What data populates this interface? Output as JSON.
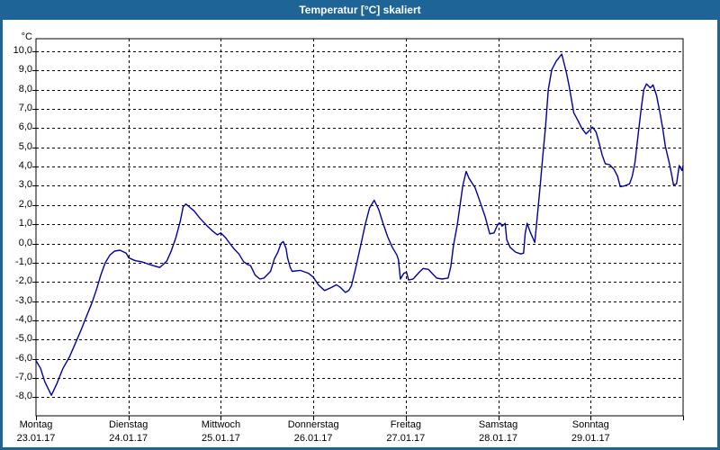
{
  "window": {
    "title": "Temperatur [°C] skaliert"
  },
  "colors": {
    "frame_blue": "#1e6496",
    "title_text": "#ffffff",
    "plot_background": "#ffffff",
    "plot_border": "#000000",
    "gridline": "#000000",
    "series_line": "#0000a0",
    "label_text": "#000000"
  },
  "y_axis": {
    "unit_label": "°C",
    "tick_labels": [
      "10,0",
      "9,0",
      "8,0",
      "7,0",
      "6,0",
      "5,0",
      "4,0",
      "3,0",
      "2,0",
      "1,0",
      "0,0",
      "-1,0",
      "-2,0",
      "-3,0",
      "-4,0",
      "-5,0",
      "-6,0",
      "-7,0",
      "-8,0"
    ]
  },
  "x_axis": {
    "days": [
      {
        "name": "Montag",
        "date": "23.01.17"
      },
      {
        "name": "Dienstag",
        "date": "24.01.17"
      },
      {
        "name": "Mittwoch",
        "date": "25.01.17"
      },
      {
        "name": "Donnerstag",
        "date": "26.01.17"
      },
      {
        "name": "Freitag",
        "date": "27.01.17"
      },
      {
        "name": "Samstag",
        "date": "28.01.17"
      },
      {
        "name": "Sonntag",
        "date": "29.01.17"
      }
    ]
  },
  "chart_data": {
    "type": "line",
    "title": "Temperatur [°C] skaliert",
    "xlabel": "",
    "ylabel": "°C",
    "ylim": [
      -8,
      10
    ],
    "y_tick_step": 1,
    "x_unit": "hours since Montag 23.01.17 00:00",
    "xlim": [
      0,
      168
    ],
    "x_day_tick_hours": [
      0,
      24,
      48,
      72,
      96,
      120,
      144
    ],
    "grid": "dashed black, horizontal every 1°C and vertical every day",
    "legend": "none",
    "series": [
      {
        "name": "Temperatur",
        "color": "#0000a0",
        "points": [
          [
            0,
            -6.1
          ],
          [
            1.2,
            -6.5
          ],
          [
            2.3,
            -7.2
          ],
          [
            4,
            -7.9
          ],
          [
            5.4,
            -7.3
          ],
          [
            7,
            -6.5
          ],
          [
            8.7,
            -5.9
          ],
          [
            10,
            -5.3
          ],
          [
            11.7,
            -4.5
          ],
          [
            13.3,
            -3.7
          ],
          [
            14.5,
            -3.1
          ],
          [
            15.7,
            -2.4
          ],
          [
            16.9,
            -1.6
          ],
          [
            18,
            -1
          ],
          [
            19.2,
            -0.6
          ],
          [
            20.4,
            -0.4
          ],
          [
            21.8,
            -0.35
          ],
          [
            23.4,
            -0.5
          ],
          [
            24.1,
            -0.75
          ],
          [
            25.8,
            -0.9
          ],
          [
            27.4,
            -0.95
          ],
          [
            28.8,
            -1.05
          ],
          [
            30.4,
            -1.15
          ],
          [
            32.1,
            -1.25
          ],
          [
            33,
            -1.1
          ],
          [
            34,
            -0.9
          ],
          [
            35.1,
            -0.4
          ],
          [
            36.3,
            0.3
          ],
          [
            37.5,
            1.2
          ],
          [
            38.2,
            1.9
          ],
          [
            38.9,
            2.05
          ],
          [
            39.8,
            1.9
          ],
          [
            41,
            1.7
          ],
          [
            42.6,
            1.3
          ],
          [
            44.5,
            0.9
          ],
          [
            46.1,
            0.6
          ],
          [
            47.1,
            0.45
          ],
          [
            48,
            0.55
          ],
          [
            49.2,
            0.3
          ],
          [
            50.3,
            0
          ],
          [
            51.5,
            -0.3
          ],
          [
            52.7,
            -0.55
          ],
          [
            53.9,
            -0.95
          ],
          [
            55,
            -1.1
          ],
          [
            55.7,
            -1.15
          ],
          [
            56.9,
            -1.65
          ],
          [
            58.1,
            -1.85
          ],
          [
            59.2,
            -1.8
          ],
          [
            60.9,
            -1.45
          ],
          [
            61.9,
            -0.8
          ],
          [
            62.8,
            -0.45
          ],
          [
            63.6,
            0
          ],
          [
            64.2,
            0.1
          ],
          [
            64.9,
            -0.25
          ],
          [
            65.3,
            -0.75
          ],
          [
            66,
            -1.25
          ],
          [
            66.5,
            -1.45
          ],
          [
            68.6,
            -1.4
          ],
          [
            70.7,
            -1.55
          ],
          [
            72,
            -1.75
          ],
          [
            73.3,
            -2.15
          ],
          [
            74.9,
            -2.45
          ],
          [
            76.6,
            -2.3
          ],
          [
            78,
            -2.15
          ],
          [
            79.1,
            -2.3
          ],
          [
            80.3,
            -2.55
          ],
          [
            81.2,
            -2.45
          ],
          [
            81.9,
            -2.2
          ],
          [
            83.1,
            -1.2
          ],
          [
            84.3,
            -0.1
          ],
          [
            85.5,
            1
          ],
          [
            86.6,
            1.85
          ],
          [
            87.8,
            2.25
          ],
          [
            89,
            1.75
          ],
          [
            90.1,
            1.05
          ],
          [
            91.3,
            0.35
          ],
          [
            92.5,
            -0.2
          ],
          [
            93.7,
            -0.6
          ],
          [
            94.1,
            -0.85
          ],
          [
            94.6,
            -1.85
          ],
          [
            95.5,
            -1.55
          ],
          [
            96.2,
            -1.5
          ],
          [
            96.7,
            -1.9
          ],
          [
            97.9,
            -1.85
          ],
          [
            99.5,
            -1.5
          ],
          [
            100.5,
            -1.3
          ],
          [
            101.9,
            -1.35
          ],
          [
            102.8,
            -1.55
          ],
          [
            104,
            -1.8
          ],
          [
            105.4,
            -1.85
          ],
          [
            107,
            -1.8
          ],
          [
            107.7,
            -1.2
          ],
          [
            108.4,
            -0.1
          ],
          [
            109.4,
            1
          ],
          [
            110.1,
            2
          ],
          [
            110.8,
            3
          ],
          [
            111.7,
            3.75
          ],
          [
            112.4,
            3.4
          ],
          [
            114,
            2.9
          ],
          [
            115.4,
            2.1
          ],
          [
            116.6,
            1.4
          ],
          [
            117.8,
            0.5
          ],
          [
            118.9,
            0.55
          ],
          [
            119.9,
            1
          ],
          [
            120.6,
            1.05
          ],
          [
            121,
            0.9
          ],
          [
            121.8,
            1.05
          ],
          [
            122.2,
            0.2
          ],
          [
            123.1,
            -0.2
          ],
          [
            124.5,
            -0.45
          ],
          [
            125.9,
            -0.55
          ],
          [
            126.6,
            -0.5
          ],
          [
            127,
            0.5
          ],
          [
            127.5,
            1.05
          ],
          [
            128.3,
            0.6
          ],
          [
            129.5,
            0.05
          ],
          [
            130.2,
            1.5
          ],
          [
            130.9,
            3
          ],
          [
            131.6,
            4.6
          ],
          [
            132.3,
            6.1
          ],
          [
            133,
            8
          ],
          [
            133.9,
            9.05
          ],
          [
            135.1,
            9.5
          ],
          [
            136.5,
            9.85
          ],
          [
            137.7,
            8.9
          ],
          [
            138.4,
            8.2
          ],
          [
            139.1,
            7.4
          ],
          [
            139.6,
            6.8
          ],
          [
            140.7,
            6.4
          ],
          [
            141.7,
            6
          ],
          [
            142.8,
            5.7
          ],
          [
            143.8,
            5.9
          ],
          [
            144.5,
            6.05
          ],
          [
            145.4,
            5.8
          ],
          [
            146.1,
            5.3
          ],
          [
            147,
            4.6
          ],
          [
            147.8,
            4.15
          ],
          [
            148.9,
            4.1
          ],
          [
            150.1,
            3.85
          ],
          [
            151,
            3.5
          ],
          [
            151.7,
            2.95
          ],
          [
            152.9,
            3
          ],
          [
            154.1,
            3.1
          ],
          [
            154.8,
            3.5
          ],
          [
            155.5,
            4.2
          ],
          [
            156.4,
            5.8
          ],
          [
            157.1,
            7
          ],
          [
            157.8,
            8
          ],
          [
            158.5,
            8.3
          ],
          [
            159.5,
            8.1
          ],
          [
            160.2,
            8.25
          ],
          [
            161.1,
            7.7
          ],
          [
            162,
            6.8
          ],
          [
            162.7,
            6
          ],
          [
            163.4,
            5.05
          ],
          [
            164.4,
            4.2
          ],
          [
            165.1,
            3.5
          ],
          [
            165.5,
            3.05
          ],
          [
            166.3,
            3.1
          ],
          [
            167,
            4.05
          ],
          [
            167.4,
            3.9
          ],
          [
            167.7,
            3.8
          ],
          [
            168,
            4.05
          ]
        ]
      }
    ]
  }
}
